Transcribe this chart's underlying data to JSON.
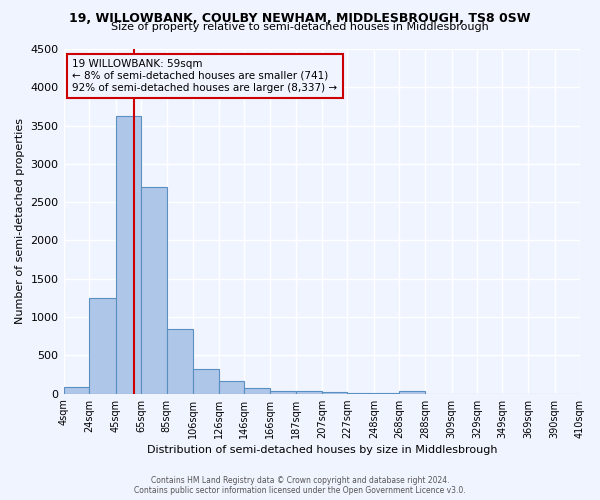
{
  "title": "19, WILLOWBANK, COULBY NEWHAM, MIDDLESBROUGH, TS8 0SW",
  "subtitle": "Size of property relative to semi-detached houses in Middlesbrough",
  "xlabel": "Distribution of semi-detached houses by size in Middlesbrough",
  "ylabel": "Number of semi-detached properties",
  "bin_edges": [
    4,
    24,
    45,
    65,
    85,
    106,
    126,
    146,
    166,
    187,
    207,
    227,
    248,
    268,
    288,
    309,
    329,
    349,
    369,
    390,
    410
  ],
  "bin_labels": [
    "4sqm",
    "24sqm",
    "45sqm",
    "65sqm",
    "85sqm",
    "106sqm",
    "126sqm",
    "146sqm",
    "166sqm",
    "187sqm",
    "207sqm",
    "227sqm",
    "248sqm",
    "268sqm",
    "288sqm",
    "309sqm",
    "329sqm",
    "349sqm",
    "369sqm",
    "390sqm",
    "410sqm"
  ],
  "counts": [
    90,
    1250,
    3620,
    2700,
    850,
    325,
    160,
    70,
    40,
    30,
    20,
    10,
    5,
    30,
    0,
    0,
    0,
    0,
    0,
    0
  ],
  "bar_color": "#aec6e8",
  "bar_edge_color": "#5a8fc2",
  "property_line_x": 59,
  "property_line_color": "#cc0000",
  "annotation_title": "19 WILLOWBANK: 59sqm",
  "annotation_line1": "← 8% of semi-detached houses are smaller (741)",
  "annotation_line2": "92% of semi-detached houses are larger (8,337) →",
  "annotation_box_color": "#cc0000",
  "ylim": [
    0,
    4500
  ],
  "yticks": [
    0,
    500,
    1000,
    1500,
    2000,
    2500,
    3000,
    3500,
    4000,
    4500
  ],
  "background_color": "#f0f4ff",
  "grid_color": "#ffffff",
  "footer1": "Contains HM Land Registry data © Crown copyright and database right 2024.",
  "footer2": "Contains public sector information licensed under the Open Government Licence v3.0."
}
